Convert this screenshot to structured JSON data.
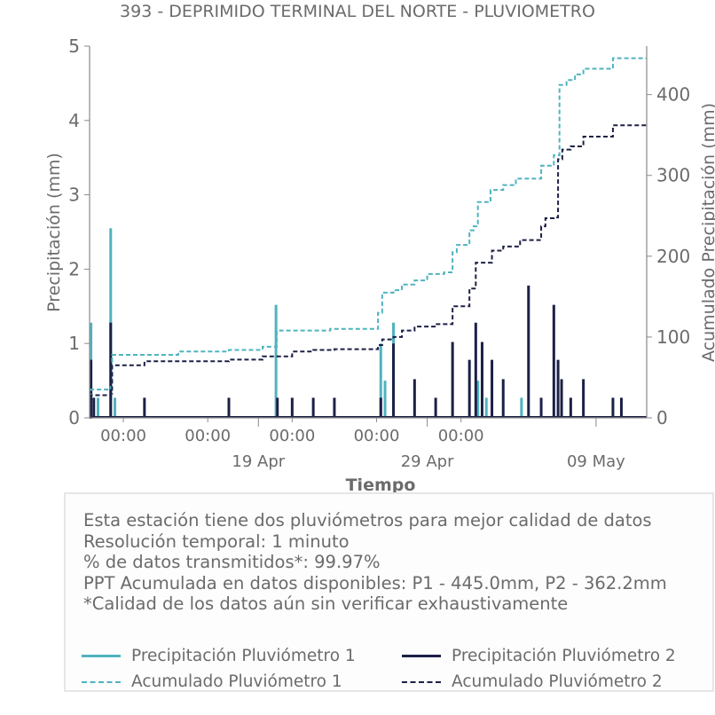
{
  "title": "393 - DEPRIMIDO TERMINAL DEL NORTE - PLUVIOMETRO",
  "colors": {
    "p1": "#4fb3bf",
    "p2": "#1c2046",
    "text": "#6b6b6b",
    "axis": "#8a8a8a"
  },
  "chart_data": {
    "type": "line",
    "title": "393 - DEPRIMIDO TERMINAL DEL NORTE - PLUVIOMETRO",
    "xlabel": "Tiempo",
    "ylabel_left": "Precipitación (mm)",
    "ylabel_right": "Acumulado Precipitación (mm)",
    "x_start": "2024-04-09",
    "x_end": "2024-05-12",
    "x_tick_labels": [
      "00:00",
      "00:00",
      "00:00",
      "00:00",
      "00:00"
    ],
    "x_date_labels": [
      "19 Apr",
      "29 Apr",
      "09 May"
    ],
    "ylim_left": [
      0,
      5
    ],
    "yticks_left": [
      0,
      1,
      2,
      3,
      4,
      5
    ],
    "ylim_right": [
      0,
      460
    ],
    "yticks_right": [
      0,
      100,
      200,
      300,
      400
    ],
    "bars_p1": [
      {
        "t": "2024-04-09T02:00",
        "v": 1.28
      },
      {
        "t": "2024-04-09T12:00",
        "v": 0.27
      },
      {
        "t": "2024-04-10T06:00",
        "v": 2.55
      },
      {
        "t": "2024-04-10T12:00",
        "v": 0.27
      },
      {
        "t": "2024-04-20T01:00",
        "v": 1.52
      },
      {
        "t": "2024-04-26T06:00",
        "v": 1.0
      },
      {
        "t": "2024-04-26T12:00",
        "v": 0.5
      },
      {
        "t": "2024-04-27T00:00",
        "v": 1.28
      },
      {
        "t": "2024-05-02T00:00",
        "v": 0.5
      },
      {
        "t": "2024-05-02T12:00",
        "v": 0.27
      },
      {
        "t": "2024-05-04T14:00",
        "v": 0.27
      }
    ],
    "bars_p2": [
      {
        "t": "2024-04-09T02:00",
        "v": 0.78
      },
      {
        "t": "2024-04-09T06:00",
        "v": 0.27
      },
      {
        "t": "2024-04-10T06:00",
        "v": 1.28
      },
      {
        "t": "2024-04-12T06:00",
        "v": 0.27
      },
      {
        "t": "2024-04-17T06:00",
        "v": 0.27
      },
      {
        "t": "2024-04-20T03:00",
        "v": 0.27
      },
      {
        "t": "2024-04-21T00:00",
        "v": 0.27
      },
      {
        "t": "2024-04-22T06:00",
        "v": 0.27
      },
      {
        "t": "2024-04-23T12:00",
        "v": 0.27
      },
      {
        "t": "2024-04-26T06:00",
        "v": 0.27
      },
      {
        "t": "2024-04-27T00:00",
        "v": 1.0
      },
      {
        "t": "2024-04-28T06:00",
        "v": 0.52
      },
      {
        "t": "2024-04-29T12:00",
        "v": 0.27
      },
      {
        "t": "2024-04-30T12:00",
        "v": 1.02
      },
      {
        "t": "2024-05-01T12:00",
        "v": 0.78
      },
      {
        "t": "2024-05-01T21:00",
        "v": 1.28
      },
      {
        "t": "2024-05-02T06:00",
        "v": 1.02
      },
      {
        "t": "2024-05-02T20:00",
        "v": 0.78
      },
      {
        "t": "2024-05-03T12:00",
        "v": 0.52
      },
      {
        "t": "2024-05-05T00:00",
        "v": 1.78
      },
      {
        "t": "2024-05-05T18:00",
        "v": 0.27
      },
      {
        "t": "2024-05-06T12:00",
        "v": 1.52
      },
      {
        "t": "2024-05-06T18:00",
        "v": 0.78
      },
      {
        "t": "2024-05-06T23:00",
        "v": 0.52
      },
      {
        "t": "2024-05-07T12:00",
        "v": 0.27
      },
      {
        "t": "2024-05-08T06:00",
        "v": 0.52
      },
      {
        "t": "2024-05-10T00:00",
        "v": 0.27
      },
      {
        "t": "2024-05-10T12:00",
        "v": 0.27
      }
    ],
    "cumulative_p1": [
      {
        "t": "2024-04-09T00:00",
        "y": 0
      },
      {
        "t": "2024-04-09T02:00",
        "y": 35
      },
      {
        "t": "2024-04-10T06:00",
        "y": 38
      },
      {
        "t": "2024-04-10T08:00",
        "y": 78
      },
      {
        "t": "2024-04-14T06:00",
        "y": 82
      },
      {
        "t": "2024-04-17T06:00",
        "y": 84
      },
      {
        "t": "2024-04-19T06:00",
        "y": 88
      },
      {
        "t": "2024-04-20T02:00",
        "y": 108
      },
      {
        "t": "2024-04-23T06:00",
        "y": 110
      },
      {
        "t": "2024-04-25T12:00",
        "y": 110
      },
      {
        "t": "2024-04-26T02:00",
        "y": 130
      },
      {
        "t": "2024-04-26T08:00",
        "y": 155
      },
      {
        "t": "2024-04-27T00:00",
        "y": 158
      },
      {
        "t": "2024-04-27T12:00",
        "y": 165
      },
      {
        "t": "2024-04-28T06:00",
        "y": 170
      },
      {
        "t": "2024-04-29T00:00",
        "y": 178
      },
      {
        "t": "2024-04-30T00:00",
        "y": 180
      },
      {
        "t": "2024-04-30T12:00",
        "y": 205
      },
      {
        "t": "2024-04-30T18:00",
        "y": 214
      },
      {
        "t": "2024-05-01T12:00",
        "y": 232
      },
      {
        "t": "2024-05-01T18:00",
        "y": 237
      },
      {
        "t": "2024-05-02T00:00",
        "y": 267
      },
      {
        "t": "2024-05-02T18:00",
        "y": 282
      },
      {
        "t": "2024-05-03T12:00",
        "y": 288
      },
      {
        "t": "2024-05-04T06:00",
        "y": 296
      },
      {
        "t": "2024-05-05T18:00",
        "y": 312
      },
      {
        "t": "2024-05-06T12:00",
        "y": 325
      },
      {
        "t": "2024-05-06T20:00",
        "y": 412
      },
      {
        "t": "2024-05-07T06:00",
        "y": 418
      },
      {
        "t": "2024-05-07T18:00",
        "y": 425
      },
      {
        "t": "2024-05-08T06:00",
        "y": 432
      },
      {
        "t": "2024-05-09T12:00",
        "y": 432
      },
      {
        "t": "2024-05-10T00:00",
        "y": 445
      },
      {
        "t": "2024-05-12T00:00",
        "y": 445
      }
    ],
    "cumulative_p2": [
      {
        "t": "2024-04-09T00:00",
        "y": 0
      },
      {
        "t": "2024-04-09T02:00",
        "y": 28
      },
      {
        "t": "2024-04-10T06:00",
        "y": 30
      },
      {
        "t": "2024-04-10T08:00",
        "y": 65
      },
      {
        "t": "2024-04-12T06:00",
        "y": 70
      },
      {
        "t": "2024-04-17T06:00",
        "y": 72
      },
      {
        "t": "2024-04-19T06:00",
        "y": 76
      },
      {
        "t": "2024-04-21T00:00",
        "y": 82
      },
      {
        "t": "2024-04-22T06:00",
        "y": 84
      },
      {
        "t": "2024-04-23T12:00",
        "y": 85
      },
      {
        "t": "2024-04-26T02:00",
        "y": 90
      },
      {
        "t": "2024-04-26T08:00",
        "y": 97
      },
      {
        "t": "2024-04-27T00:00",
        "y": 100
      },
      {
        "t": "2024-04-27T12:00",
        "y": 108
      },
      {
        "t": "2024-04-28T06:00",
        "y": 113
      },
      {
        "t": "2024-04-29T12:00",
        "y": 116
      },
      {
        "t": "2024-04-30T12:00",
        "y": 138
      },
      {
        "t": "2024-05-01T12:00",
        "y": 160
      },
      {
        "t": "2024-05-01T21:00",
        "y": 192
      },
      {
        "t": "2024-05-02T20:00",
        "y": 207
      },
      {
        "t": "2024-05-03T12:00",
        "y": 212
      },
      {
        "t": "2024-05-04T12:00",
        "y": 220
      },
      {
        "t": "2024-05-05T18:00",
        "y": 237
      },
      {
        "t": "2024-05-06T00:00",
        "y": 247
      },
      {
        "t": "2024-05-06T12:00",
        "y": 248
      },
      {
        "t": "2024-05-06T18:00",
        "y": 320
      },
      {
        "t": "2024-05-07T00:00",
        "y": 332
      },
      {
        "t": "2024-05-07T12:00",
        "y": 336
      },
      {
        "t": "2024-05-08T06:00",
        "y": 348
      },
      {
        "t": "2024-05-09T12:00",
        "y": 348
      },
      {
        "t": "2024-05-10T00:00",
        "y": 362
      },
      {
        "t": "2024-05-12T00:00",
        "y": 362
      }
    ]
  },
  "info": {
    "line1": "Esta estación tiene dos pluviómetros para mejor calidad de datos",
    "line2": "Resolución temporal: 1 minuto",
    "line3": "% de datos transmitidos*: 99.97%",
    "line4": "PPT Acumulada en datos disponibles: P1 - 445.0mm, P2 - 362.2mm",
    "line5": "*Calidad de los datos aún sin verificar exhaustivamente"
  },
  "legend": {
    "p1_precip": "Precipitación Pluviómetro 1",
    "p2_precip": "Precipitación Pluviómetro 2",
    "p1_cum": "Acumulado Pluviómetro 1",
    "p2_cum": "Acumulado Pluviómetro 2"
  }
}
